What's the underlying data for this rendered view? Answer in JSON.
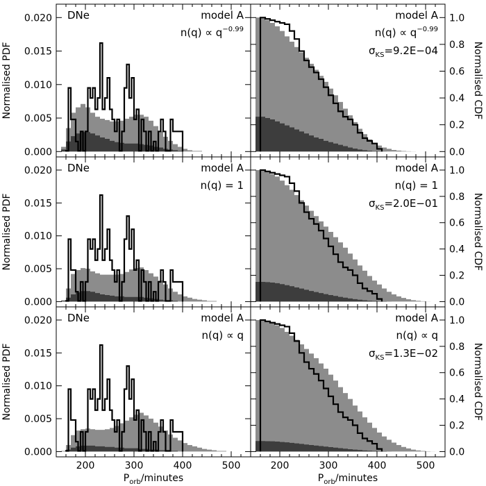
{
  "figure": {
    "xlabel_main": "P",
    "xlabel_sub": "orb",
    "xlabel_rest": "/minutes",
    "ylabel_left": "Normalised PDF",
    "ylabel_right": "Normalised CDF"
  },
  "chart_data": [
    {
      "type": "area",
      "panel": "pdf",
      "row": 0,
      "tag": "DNe",
      "model": "model A",
      "law_text": "n(q) ∝ q",
      "law_exp": "−0.99",
      "xlim": [
        140,
        540
      ],
      "ylim": [
        -0.0008,
        0.022
      ],
      "x_ticks": [
        "200",
        "300",
        "400",
        "500"
      ],
      "y_ticks": [
        "0.000",
        "0.005",
        "0.010",
        "0.015",
        "0.020"
      ],
      "bins": [
        150,
        160,
        170,
        180,
        190,
        200,
        210,
        220,
        230,
        240,
        250,
        260,
        270,
        280,
        290,
        300,
        310,
        320,
        330,
        340,
        350,
        360,
        370,
        380,
        390,
        400,
        410,
        420,
        430,
        440,
        450,
        460,
        470,
        480,
        490,
        500,
        510,
        520,
        530
      ],
      "total": [
        0.0007,
        0.0035,
        0.0058,
        0.0066,
        0.0071,
        0.0066,
        0.0058,
        0.0052,
        0.0049,
        0.0047,
        0.0045,
        0.0045,
        0.0046,
        0.0049,
        0.0052,
        0.0055,
        0.0055,
        0.0052,
        0.0046,
        0.0038,
        0.003,
        0.0022,
        0.0016,
        0.0011,
        0.0007,
        0.0004,
        0.0002,
        0.0001,
        0.0001,
        0,
        0,
        0,
        0,
        0,
        0,
        0,
        0,
        0,
        0
      ],
      "component": [
        0.0003,
        0.0015,
        0.0023,
        0.0027,
        0.0029,
        0.0029,
        0.0027,
        0.0024,
        0.0021,
        0.0019,
        0.0016,
        0.0014,
        0.0013,
        0.0012,
        0.0012,
        0.0012,
        0.0011,
        0.001,
        0.0009,
        0.0007,
        0.0006,
        0.0004,
        0.0003,
        0.0002,
        0.0001,
        0,
        0,
        0,
        0,
        0,
        0,
        0,
        0,
        0,
        0,
        0,
        0,
        0,
        0
      ],
      "observed_edges": [
        160,
        165,
        170,
        175,
        180,
        185,
        190,
        195,
        200,
        205,
        210,
        215,
        220,
        225,
        230,
        235,
        240,
        245,
        250,
        255,
        260,
        265,
        270,
        275,
        280,
        285,
        290,
        295,
        300,
        305,
        310,
        315,
        320,
        325,
        330,
        335,
        340,
        345,
        350,
        355,
        360,
        365,
        370,
        375,
        380,
        385,
        390,
        395,
        400
      ],
      "observed": [
        0.0001,
        0.0095,
        0.0048,
        0.0048,
        0.0015,
        0.0001,
        0.003,
        0.0001,
        0.003,
        0.0095,
        0.008,
        0.0095,
        0.0063,
        0.008,
        0.0162,
        0.0063,
        0.008,
        0.011,
        0.0063,
        0.0048,
        0.003,
        0.0048,
        0.0001,
        0.003,
        0.0095,
        0.013,
        0.008,
        0.011,
        0.0048,
        0.0063,
        0.0001,
        0.0048,
        0.003,
        0.0001,
        0.003,
        0.0001,
        0.0015,
        0.0001,
        0.003,
        0.0048,
        0.003,
        0.0001,
        0.0001,
        0.0048,
        0.003,
        0.003,
        0.003,
        0.003
      ]
    },
    {
      "type": "area",
      "panel": "cdf",
      "row": 0,
      "model": "model A",
      "law_text": "n(q) ∝ q",
      "law_exp": "−0.99",
      "ks_sym": "σ",
      "ks_sub": "KS",
      "ks_value": "=9.2E−04",
      "xlim": [
        140,
        540
      ],
      "ylim": [
        -0.04,
        1.1
      ],
      "x_ticks": [
        "200",
        "300",
        "400",
        "500"
      ],
      "y_ticks": [
        "0.0",
        "0.2",
        "0.4",
        "0.6",
        "0.8",
        "1.0"
      ],
      "bins": [
        150,
        160,
        170,
        180,
        190,
        200,
        210,
        220,
        230,
        240,
        250,
        260,
        270,
        280,
        290,
        300,
        310,
        320,
        330,
        340,
        350,
        360,
        370,
        380,
        390,
        400,
        410,
        420,
        430,
        440,
        450,
        460,
        470,
        480,
        490,
        500,
        510,
        520,
        530
      ],
      "total": [
        1.0,
        0.995,
        0.98,
        0.96,
        0.935,
        0.9,
        0.86,
        0.82,
        0.78,
        0.74,
        0.7,
        0.655,
        0.61,
        0.565,
        0.52,
        0.47,
        0.42,
        0.37,
        0.32,
        0.27,
        0.22,
        0.17,
        0.13,
        0.09,
        0.065,
        0.045,
        0.03,
        0.02,
        0.012,
        0.007,
        0.004,
        0.002,
        0.001,
        0,
        0,
        0,
        0,
        0,
        0
      ],
      "component": [
        0.26,
        0.26,
        0.25,
        0.24,
        0.225,
        0.21,
        0.195,
        0.18,
        0.165,
        0.15,
        0.135,
        0.12,
        0.105,
        0.095,
        0.08,
        0.07,
        0.06,
        0.05,
        0.04,
        0.03,
        0.022,
        0.015,
        0.01,
        0.006,
        0.003,
        0.002,
        0.001,
        0,
        0,
        0,
        0,
        0,
        0,
        0,
        0,
        0,
        0,
        0,
        0
      ],
      "observed_edges": [
        160,
        170,
        180,
        190,
        200,
        210,
        220,
        230,
        240,
        250,
        260,
        270,
        280,
        290,
        300,
        310,
        320,
        330,
        340,
        350,
        360,
        370,
        380,
        390,
        400,
        410
      ],
      "observed": [
        1.0,
        0.99,
        0.98,
        0.97,
        0.96,
        0.95,
        0.9,
        0.84,
        0.75,
        0.68,
        0.63,
        0.59,
        0.54,
        0.48,
        0.42,
        0.36,
        0.3,
        0.26,
        0.24,
        0.2,
        0.14,
        0.1,
        0.08,
        0.06,
        0.02
      ]
    },
    {
      "type": "area",
      "panel": "pdf",
      "row": 1,
      "tag": "DNe",
      "model": "model A",
      "law_text": "n(q) = 1",
      "law_exp": "",
      "xlim": [
        140,
        540
      ],
      "ylim": [
        -0.0008,
        0.022
      ],
      "x_ticks": [
        "200",
        "300",
        "400",
        "500"
      ],
      "y_ticks": [
        "0.000",
        "0.005",
        "0.010",
        "0.015",
        "0.020"
      ],
      "bins": [
        150,
        160,
        170,
        180,
        190,
        200,
        210,
        220,
        230,
        240,
        250,
        260,
        270,
        280,
        290,
        300,
        310,
        320,
        330,
        340,
        350,
        360,
        370,
        380,
        390,
        400,
        410,
        420,
        430,
        440,
        450,
        460,
        470,
        480,
        490,
        500,
        510,
        520,
        530
      ],
      "total": [
        0.0002,
        0.002,
        0.0042,
        0.0048,
        0.0051,
        0.005,
        0.0046,
        0.0043,
        0.0041,
        0.0041,
        0.0041,
        0.0041,
        0.0042,
        0.0045,
        0.0049,
        0.0051,
        0.0052,
        0.0048,
        0.0043,
        0.0038,
        0.0032,
        0.0026,
        0.002,
        0.0015,
        0.0011,
        0.0008,
        0.0006,
        0.0004,
        0.0003,
        0.0002,
        0.0001,
        0.0001,
        0,
        0,
        0,
        0,
        0,
        0,
        0
      ],
      "component": [
        0.0001,
        0.0006,
        0.0011,
        0.0014,
        0.0016,
        0.0016,
        0.0015,
        0.0013,
        0.0011,
        0.001,
        0.0009,
        0.0008,
        0.0008,
        0.0007,
        0.0007,
        0.0007,
        0.0007,
        0.0006,
        0.0005,
        0.0004,
        0.0003,
        0.0002,
        0.0002,
        0.0001,
        0,
        0,
        0,
        0,
        0,
        0,
        0,
        0,
        0,
        0,
        0,
        0,
        0,
        0,
        0
      ],
      "observed_edges": [
        160,
        165,
        170,
        175,
        180,
        185,
        190,
        195,
        200,
        205,
        210,
        215,
        220,
        225,
        230,
        235,
        240,
        245,
        250,
        255,
        260,
        265,
        270,
        275,
        280,
        285,
        290,
        295,
        300,
        305,
        310,
        315,
        320,
        325,
        330,
        335,
        340,
        345,
        350,
        355,
        360,
        365,
        370,
        375,
        380,
        385,
        390,
        395,
        400
      ],
      "observed": [
        0.0001,
        0.0095,
        0.0048,
        0.0048,
        0.0015,
        0.0001,
        0.003,
        0.0001,
        0.003,
        0.0095,
        0.008,
        0.0095,
        0.0063,
        0.008,
        0.0162,
        0.0063,
        0.008,
        0.011,
        0.0063,
        0.0048,
        0.003,
        0.0048,
        0.0001,
        0.003,
        0.0095,
        0.013,
        0.008,
        0.011,
        0.0048,
        0.0063,
        0.0001,
        0.0048,
        0.003,
        0.0001,
        0.003,
        0.0001,
        0.0015,
        0.0001,
        0.003,
        0.0048,
        0.003,
        0.0001,
        0.0001,
        0.0048,
        0.003,
        0.003,
        0.003,
        0.003
      ]
    },
    {
      "type": "area",
      "panel": "cdf",
      "row": 1,
      "model": "model A",
      "law_text": "n(q) = 1",
      "law_exp": "",
      "ks_sym": "σ",
      "ks_sub": "KS",
      "ks_value": "=2.0E−01",
      "xlim": [
        140,
        540
      ],
      "ylim": [
        -0.04,
        1.1
      ],
      "x_ticks": [
        "200",
        "300",
        "400",
        "500"
      ],
      "y_ticks": [
        "0.0",
        "0.2",
        "0.4",
        "0.6",
        "0.8",
        "1.0"
      ],
      "bins": [
        150,
        160,
        170,
        180,
        190,
        200,
        210,
        220,
        230,
        240,
        250,
        260,
        270,
        280,
        290,
        300,
        310,
        320,
        330,
        340,
        350,
        360,
        370,
        380,
        390,
        400,
        410,
        420,
        430,
        440,
        450,
        460,
        470,
        480,
        490,
        500,
        510,
        520,
        530
      ],
      "total": [
        1.0,
        0.998,
        0.99,
        0.97,
        0.95,
        0.92,
        0.885,
        0.85,
        0.81,
        0.77,
        0.73,
        0.69,
        0.65,
        0.61,
        0.57,
        0.53,
        0.49,
        0.45,
        0.41,
        0.365,
        0.32,
        0.275,
        0.235,
        0.195,
        0.16,
        0.13,
        0.1,
        0.075,
        0.055,
        0.04,
        0.028,
        0.018,
        0.011,
        0.006,
        0.003,
        0.001,
        0,
        0,
        0
      ],
      "component": [
        0.15,
        0.15,
        0.148,
        0.145,
        0.14,
        0.133,
        0.125,
        0.117,
        0.108,
        0.099,
        0.09,
        0.081,
        0.073,
        0.065,
        0.057,
        0.05,
        0.043,
        0.036,
        0.03,
        0.024,
        0.019,
        0.014,
        0.01,
        0.007,
        0.005,
        0.003,
        0.002,
        0.001,
        0,
        0,
        0,
        0,
        0,
        0,
        0,
        0,
        0,
        0,
        0
      ],
      "observed_edges": [
        160,
        170,
        180,
        190,
        200,
        210,
        220,
        230,
        240,
        250,
        260,
        270,
        280,
        290,
        300,
        310,
        320,
        330,
        340,
        350,
        360,
        370,
        380,
        390,
        400,
        410
      ],
      "observed": [
        1.0,
        0.99,
        0.98,
        0.97,
        0.96,
        0.95,
        0.9,
        0.84,
        0.75,
        0.68,
        0.63,
        0.59,
        0.54,
        0.48,
        0.42,
        0.36,
        0.3,
        0.26,
        0.24,
        0.2,
        0.14,
        0.1,
        0.08,
        0.06,
        0.02
      ]
    },
    {
      "type": "area",
      "panel": "pdf",
      "row": 2,
      "tag": "DNe",
      "model": "model A",
      "law_text": "n(q) ∝ q",
      "law_exp": "",
      "xlim": [
        140,
        540
      ],
      "ylim": [
        -0.0008,
        0.022
      ],
      "x_ticks": [
        "200",
        "300",
        "400",
        "500"
      ],
      "y_ticks": [
        "0.000",
        "0.005",
        "0.010",
        "0.015",
        "0.020"
      ],
      "bins": [
        150,
        160,
        170,
        180,
        190,
        200,
        210,
        220,
        230,
        240,
        250,
        260,
        270,
        280,
        290,
        300,
        310,
        320,
        330,
        340,
        350,
        360,
        370,
        380,
        390,
        400,
        410,
        420,
        430,
        440,
        450,
        460,
        470,
        480,
        490,
        500,
        510,
        520,
        530
      ],
      "total": [
        0.0001,
        0.001,
        0.0025,
        0.0032,
        0.0034,
        0.0035,
        0.0034,
        0.0033,
        0.0033,
        0.0034,
        0.0036,
        0.0039,
        0.0043,
        0.0047,
        0.0052,
        0.0056,
        0.0059,
        0.0055,
        0.005,
        0.0044,
        0.0038,
        0.0032,
        0.0026,
        0.0021,
        0.0017,
        0.0013,
        0.001,
        0.0008,
        0.0006,
        0.0004,
        0.0003,
        0.0002,
        0.0001,
        0.0001,
        0,
        0,
        0,
        0,
        0
      ],
      "component": [
        0,
        0.0003,
        0.0006,
        0.0008,
        0.0009,
        0.0009,
        0.0009,
        0.0008,
        0.0008,
        0.0007,
        0.0007,
        0.0006,
        0.0006,
        0.0005,
        0.0005,
        0.0005,
        0.0004,
        0.0004,
        0.0003,
        0.0003,
        0.0002,
        0.0002,
        0.0001,
        0.0001,
        0,
        0,
        0,
        0,
        0,
        0,
        0,
        0,
        0,
        0,
        0,
        0,
        0,
        0,
        0
      ],
      "observed_edges": [
        160,
        165,
        170,
        175,
        180,
        185,
        190,
        195,
        200,
        205,
        210,
        215,
        220,
        225,
        230,
        235,
        240,
        245,
        250,
        255,
        260,
        265,
        270,
        275,
        280,
        285,
        290,
        295,
        300,
        305,
        310,
        315,
        320,
        325,
        330,
        335,
        340,
        345,
        350,
        355,
        360,
        365,
        370,
        375,
        380,
        385,
        390,
        395,
        400
      ],
      "observed": [
        0.0001,
        0.0095,
        0.0048,
        0.0048,
        0.0015,
        0.0001,
        0.003,
        0.0001,
        0.003,
        0.0095,
        0.008,
        0.0095,
        0.0063,
        0.008,
        0.0162,
        0.0063,
        0.008,
        0.011,
        0.0063,
        0.0048,
        0.003,
        0.0048,
        0.0001,
        0.003,
        0.0095,
        0.013,
        0.008,
        0.011,
        0.0048,
        0.0063,
        0.0001,
        0.0048,
        0.003,
        0.0001,
        0.003,
        0.0001,
        0.0015,
        0.0001,
        0.003,
        0.0048,
        0.003,
        0.0001,
        0.0001,
        0.0048,
        0.003,
        0.003,
        0.003,
        0.003
      ]
    },
    {
      "type": "area",
      "panel": "cdf",
      "row": 2,
      "model": "model A",
      "law_text": "n(q) ∝ q",
      "law_exp": "",
      "ks_sym": "σ",
      "ks_sub": "KS",
      "ks_value": "=1.3E−02",
      "xlim": [
        140,
        540
      ],
      "ylim": [
        -0.04,
        1.1
      ],
      "x_ticks": [
        "200",
        "300",
        "400",
        "500"
      ],
      "y_ticks": [
        "0.0",
        "0.2",
        "0.4",
        "0.6",
        "0.8",
        "1.0"
      ],
      "bins": [
        150,
        160,
        170,
        180,
        190,
        200,
        210,
        220,
        230,
        240,
        250,
        260,
        270,
        280,
        290,
        300,
        310,
        320,
        330,
        340,
        350,
        360,
        370,
        380,
        390,
        400,
        410,
        420,
        430,
        440,
        450,
        460,
        470,
        480,
        490,
        500,
        510,
        520,
        530
      ],
      "total": [
        1.0,
        0.998,
        0.99,
        0.975,
        0.96,
        0.94,
        0.91,
        0.88,
        0.85,
        0.815,
        0.78,
        0.745,
        0.71,
        0.67,
        0.63,
        0.585,
        0.54,
        0.49,
        0.445,
        0.4,
        0.35,
        0.305,
        0.26,
        0.22,
        0.18,
        0.145,
        0.115,
        0.09,
        0.068,
        0.05,
        0.035,
        0.024,
        0.015,
        0.009,
        0.005,
        0.002,
        0.001,
        0,
        0
      ],
      "component": [
        0.08,
        0.08,
        0.079,
        0.078,
        0.076,
        0.073,
        0.07,
        0.066,
        0.062,
        0.058,
        0.054,
        0.05,
        0.046,
        0.042,
        0.038,
        0.034,
        0.03,
        0.026,
        0.022,
        0.018,
        0.015,
        0.012,
        0.009,
        0.007,
        0.005,
        0.003,
        0.002,
        0.001,
        0,
        0,
        0,
        0,
        0,
        0,
        0,
        0,
        0,
        0,
        0
      ],
      "observed_edges": [
        160,
        170,
        180,
        190,
        200,
        210,
        220,
        230,
        240,
        250,
        260,
        270,
        280,
        290,
        300,
        310,
        320,
        330,
        340,
        350,
        360,
        370,
        380,
        390,
        400,
        410
      ],
      "observed": [
        1.0,
        0.99,
        0.98,
        0.97,
        0.96,
        0.95,
        0.9,
        0.84,
        0.75,
        0.68,
        0.63,
        0.59,
        0.54,
        0.48,
        0.42,
        0.36,
        0.3,
        0.26,
        0.24,
        0.2,
        0.14,
        0.1,
        0.08,
        0.06,
        0.02
      ]
    }
  ]
}
